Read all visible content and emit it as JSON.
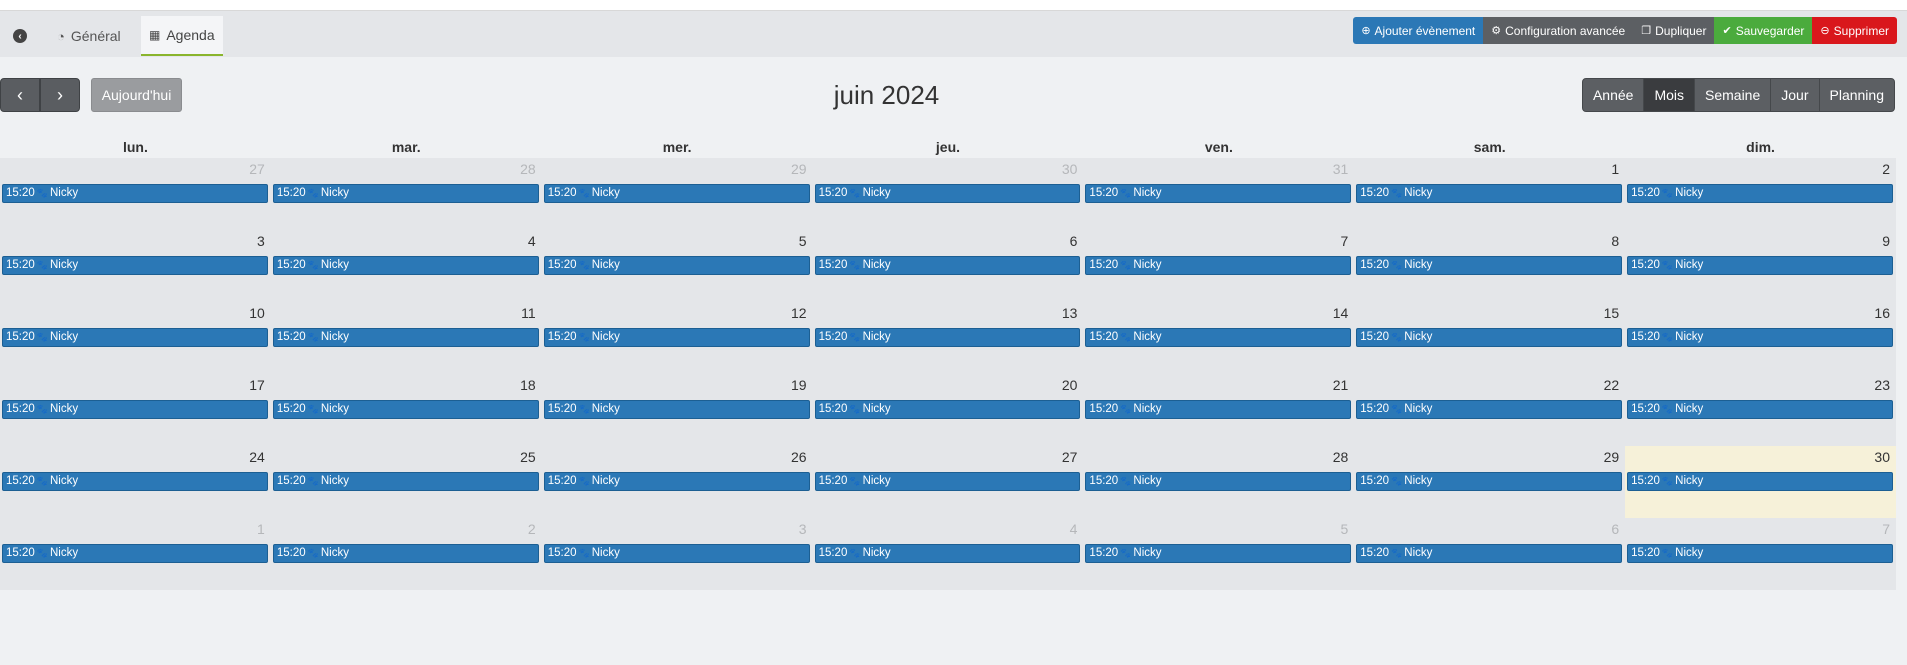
{
  "tabs": {
    "general": "Général",
    "agenda": "Agenda"
  },
  "toolbar": {
    "add_event": "Ajouter évènement",
    "advanced_config": "Configuration avancée",
    "duplicate": "Dupliquer",
    "save": "Sauvegarder",
    "delete": "Supprimer"
  },
  "calendar": {
    "today_label": "Aujourd'hui",
    "title": "juin 2024",
    "views": [
      "Année",
      "Mois",
      "Semaine",
      "Jour",
      "Planning"
    ],
    "active_view": "Mois",
    "weekdays": [
      "lun.",
      "mar.",
      "mer.",
      "jeu.",
      "ven.",
      "sam.",
      "dim."
    ],
    "event_time": "15:20",
    "event_title": "Nicky",
    "weeks": [
      [
        {
          "d": "27",
          "o": true
        },
        {
          "d": "28",
          "o": true
        },
        {
          "d": "29",
          "o": true
        },
        {
          "d": "30",
          "o": true
        },
        {
          "d": "31",
          "o": true
        },
        {
          "d": "1"
        },
        {
          "d": "2"
        }
      ],
      [
        {
          "d": "3"
        },
        {
          "d": "4"
        },
        {
          "d": "5"
        },
        {
          "d": "6"
        },
        {
          "d": "7"
        },
        {
          "d": "8"
        },
        {
          "d": "9"
        }
      ],
      [
        {
          "d": "10"
        },
        {
          "d": "11"
        },
        {
          "d": "12"
        },
        {
          "d": "13"
        },
        {
          "d": "14"
        },
        {
          "d": "15"
        },
        {
          "d": "16"
        }
      ],
      [
        {
          "d": "17"
        },
        {
          "d": "18"
        },
        {
          "d": "19"
        },
        {
          "d": "20"
        },
        {
          "d": "21"
        },
        {
          "d": "22"
        },
        {
          "d": "23"
        }
      ],
      [
        {
          "d": "24"
        },
        {
          "d": "25"
        },
        {
          "d": "26"
        },
        {
          "d": "27"
        },
        {
          "d": "28"
        },
        {
          "d": "29"
        },
        {
          "d": "30",
          "today": true
        }
      ],
      [
        {
          "d": "1",
          "o": true
        },
        {
          "d": "2",
          "o": true
        },
        {
          "d": "3",
          "o": true
        },
        {
          "d": "4",
          "o": true
        },
        {
          "d": "5",
          "o": true
        },
        {
          "d": "6",
          "o": true
        },
        {
          "d": "7",
          "o": true
        }
      ]
    ]
  }
}
